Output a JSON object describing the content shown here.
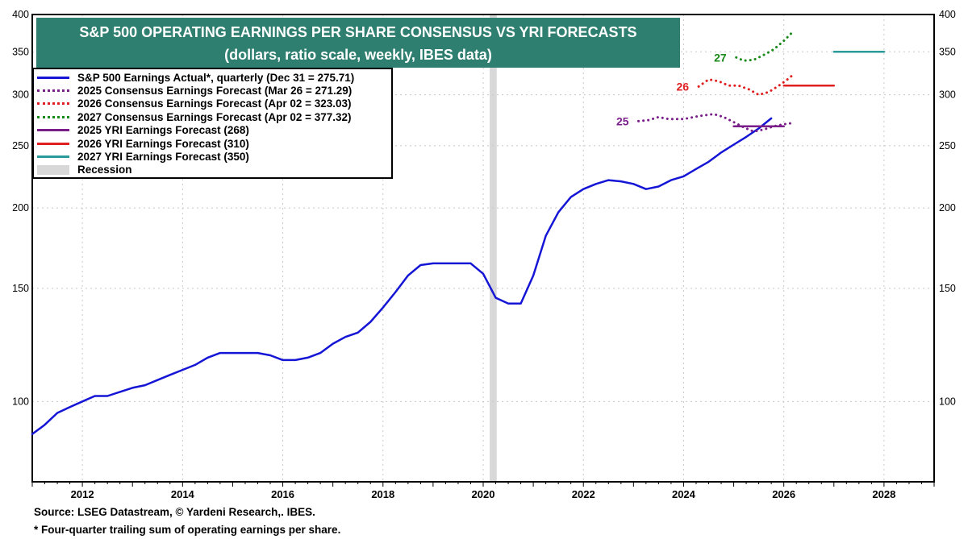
{
  "chart_data": {
    "type": "line",
    "title": "S&P 500 OPERATING EARNINGS PER SHARE CONSENSUS VS YRI FORECASTS",
    "subtitle": "(dollars, ratio scale, weekly, IBES data)",
    "y_scale": "log",
    "ylim": [
      75,
      400
    ],
    "xlim": [
      2011,
      2029
    ],
    "y_ticks": [
      100,
      150,
      200,
      250,
      300,
      350,
      400
    ],
    "x_ticks": [
      2012,
      2014,
      2016,
      2018,
      2020,
      2022,
      2024,
      2026,
      2028
    ],
    "grid": true,
    "legend_position": "top-left",
    "recession": {
      "label": "Recession",
      "start": 2020.13,
      "end": 2020.27,
      "color": "#d8d8d8"
    },
    "series": [
      {
        "name": "S&P 500 Earnings Actual*, quarterly (Dec 31 = 275.71)",
        "color": "#1515d6",
        "style": "solid",
        "x": [
          2011.0,
          2011.25,
          2011.5,
          2011.75,
          2012.0,
          2012.25,
          2012.5,
          2012.75,
          2013.0,
          2013.25,
          2013.5,
          2013.75,
          2014.0,
          2014.25,
          2014.5,
          2014.75,
          2015.0,
          2015.25,
          2015.5,
          2015.75,
          2016.0,
          2016.25,
          2016.5,
          2016.75,
          2017.0,
          2017.25,
          2017.5,
          2017.75,
          2018.0,
          2018.25,
          2018.5,
          2018.75,
          2019.0,
          2019.25,
          2019.5,
          2019.75,
          2020.0,
          2020.25,
          2020.5,
          2020.75,
          2021.0,
          2021.25,
          2021.5,
          2021.75,
          2022.0,
          2022.25,
          2022.5,
          2022.75,
          2023.0,
          2023.25,
          2023.5,
          2023.75,
          2024.0,
          2024.25,
          2024.5,
          2024.75,
          2025.0,
          2025.25,
          2025.5,
          2025.75
        ],
        "y": [
          89,
          92,
          96,
          98,
          100,
          102,
          102,
          103.5,
          105,
          106,
          108,
          110,
          112,
          114,
          117,
          119,
          119,
          119,
          119,
          118,
          116,
          116,
          117,
          119,
          123,
          126,
          128,
          133,
          140,
          148,
          157,
          163,
          164,
          164,
          164,
          164,
          158,
          145,
          142,
          142,
          157,
          181,
          197,
          208,
          214,
          218,
          221,
          220,
          218,
          214,
          216,
          221,
          224,
          230,
          236,
          244,
          251,
          258,
          266,
          275.71
        ]
      },
      {
        "name": "2025 Consensus Earnings Forecast (Mar 26 = 271.29)",
        "label": "25",
        "color": "#7a1f8a",
        "style": "dotted",
        "x": [
          2023.1,
          2023.3,
          2023.5,
          2023.7,
          2024.0,
          2024.3,
          2024.6,
          2024.8,
          2025.0,
          2025.2,
          2025.4,
          2025.6,
          2025.8,
          2026.0,
          2026.2
        ],
        "y": [
          273,
          274,
          277,
          275,
          275,
          278,
          280,
          277,
          272,
          267,
          263,
          265,
          268,
          270,
          271.29
        ]
      },
      {
        "name": "2026 Consensus Earnings Forecast (Apr 02 = 323.03)",
        "label": "26",
        "color": "#e02020",
        "style": "dotted",
        "x": [
          2024.3,
          2024.5,
          2024.7,
          2024.9,
          2025.1,
          2025.3,
          2025.5,
          2025.7,
          2025.9,
          2026.05,
          2026.2
        ],
        "y": [
          309,
          317,
          315,
          310,
          310,
          306,
          300,
          303,
          310,
          316,
          323.03
        ]
      },
      {
        "name": "2027 Consensus Earnings Forecast (Apr 02 = 377.32)",
        "label": "27",
        "color": "#1a8a1a",
        "style": "dotted",
        "x": [
          2025.05,
          2025.2,
          2025.4,
          2025.6,
          2025.8,
          2026.0,
          2026.2
        ],
        "y": [
          343,
          339,
          340,
          346,
          353,
          364,
          377.32
        ]
      },
      {
        "name": "2025 YRI Earnings Forecast (268)",
        "color": "#7a1f8a",
        "style": "solid",
        "x": [
          2025.0,
          2026.0
        ],
        "y": [
          268,
          268
        ]
      },
      {
        "name": "2026 YRI Earnings Forecast (310)",
        "color": "#e02020",
        "style": "solid",
        "x": [
          2026.0,
          2027.0
        ],
        "y": [
          310,
          310
        ]
      },
      {
        "name": "2027 YRI Earnings Forecast (350)",
        "color": "#2a9a9a",
        "style": "solid",
        "x": [
          2027.0,
          2028.0
        ],
        "y": [
          350,
          350
        ]
      }
    ]
  },
  "footer": {
    "source": "Source: LSEG Datastream, © Yardeni Research,. IBES.",
    "note": "* Four-quarter trailing sum of operating earnings per share."
  }
}
